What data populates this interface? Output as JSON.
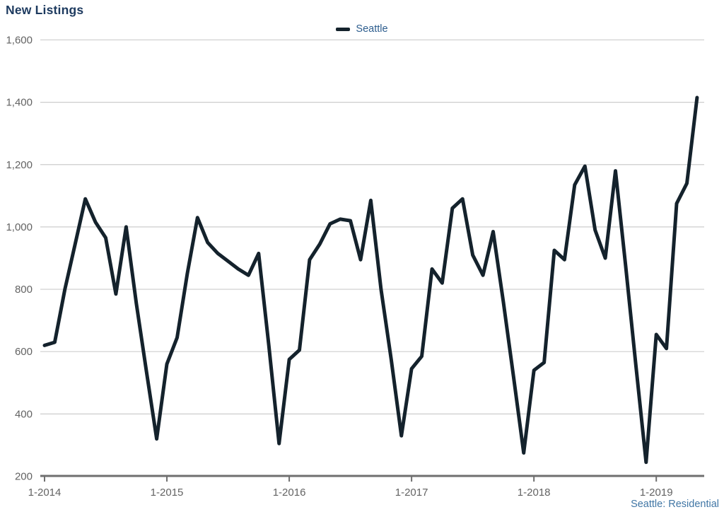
{
  "title": "New Listings",
  "legend": {
    "label": "Seattle"
  },
  "footer": {
    "source_label": "Seattle: Residential"
  },
  "colors": {
    "title": "#1d3a5f",
    "series_line": "#14222c",
    "legend_label": "#2d5d8e",
    "footer_label": "#4076a5",
    "axis_label": "#636363",
    "gridline": "#cdcdcd",
    "axis_line": "#6f6f6f"
  },
  "chart_data": {
    "type": "line",
    "title": "New Listings",
    "xlabel": "",
    "ylabel": "",
    "legend_position": "top-center",
    "grid": "horizontal",
    "x": [
      "2014-01",
      "2014-02",
      "2014-03",
      "2014-04",
      "2014-05",
      "2014-06",
      "2014-07",
      "2014-08",
      "2014-09",
      "2014-10",
      "2014-11",
      "2014-12",
      "2015-01",
      "2015-02",
      "2015-03",
      "2015-04",
      "2015-05",
      "2015-06",
      "2015-07",
      "2015-08",
      "2015-09",
      "2015-10",
      "2015-11",
      "2015-12",
      "2016-01",
      "2016-02",
      "2016-03",
      "2016-04",
      "2016-05",
      "2016-06",
      "2016-07",
      "2016-08",
      "2016-09",
      "2016-10",
      "2016-11",
      "2016-12",
      "2017-01",
      "2017-02",
      "2017-03",
      "2017-04",
      "2017-05",
      "2017-06",
      "2017-07",
      "2017-08",
      "2017-09",
      "2017-10",
      "2017-11",
      "2017-12",
      "2018-01",
      "2018-02",
      "2018-03",
      "2018-04",
      "2018-05",
      "2018-06",
      "2018-07",
      "2018-08",
      "2018-09",
      "2018-10",
      "2018-11",
      "2018-12",
      "2019-01",
      "2019-02",
      "2019-03",
      "2019-04",
      "2019-05"
    ],
    "series": [
      {
        "name": "Seattle",
        "values": [
          620,
          630,
          800,
          945,
          1090,
          1015,
          965,
          785,
          1000,
          755,
          535,
          320,
          560,
          645,
          850,
          1030,
          950,
          915,
          890,
          865,
          845,
          915,
          620,
          305,
          575,
          605,
          895,
          945,
          1010,
          1025,
          1020,
          895,
          1085,
          800,
          575,
          330,
          545,
          585,
          865,
          820,
          1060,
          1090,
          910,
          845,
          985,
          760,
          520,
          275,
          540,
          565,
          925,
          895,
          1135,
          1195,
          990,
          900,
          1180,
          875,
          555,
          245,
          655,
          610,
          1075,
          1140,
          1415
        ]
      }
    ],
    "x_tick_labels": [
      "1-2014",
      "1-2015",
      "1-2016",
      "1-2017",
      "1-2018",
      "1-2019"
    ],
    "x_tick_every": 12,
    "y_ticks": [
      200,
      400,
      600,
      800,
      1000,
      1200,
      1400,
      1600
    ],
    "ylim": [
      200,
      1600
    ]
  }
}
